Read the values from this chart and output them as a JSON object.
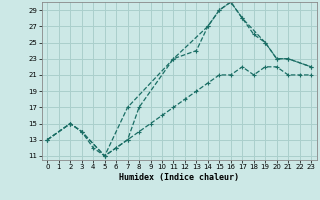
{
  "title": "",
  "xlabel": "Humidex (Indice chaleur)",
  "bg_color": "#cce8e6",
  "grid_color": "#aacfcc",
  "line_color": "#1a6e65",
  "xlim": [
    -0.5,
    23.5
  ],
  "ylim": [
    10.5,
    30.0
  ],
  "xticks": [
    0,
    1,
    2,
    3,
    4,
    5,
    6,
    7,
    8,
    9,
    10,
    11,
    12,
    13,
    14,
    15,
    16,
    17,
    18,
    19,
    20,
    21,
    22,
    23
  ],
  "yticks": [
    11,
    13,
    15,
    17,
    19,
    21,
    23,
    25,
    27,
    29
  ],
  "line1_x": [
    0,
    2,
    3,
    5,
    6,
    7,
    8,
    11,
    13,
    14,
    15,
    16,
    17,
    19,
    20,
    21,
    23
  ],
  "line1_y": [
    13,
    15,
    14,
    11,
    12,
    13,
    17,
    23,
    24,
    27,
    29,
    30,
    28,
    25,
    23,
    23,
    22
  ],
  "line2_x": [
    0,
    2,
    3,
    5,
    7,
    11,
    14,
    15,
    16,
    17,
    18,
    19,
    20,
    21,
    23
  ],
  "line2_y": [
    13,
    15,
    14,
    11,
    17,
    23,
    27,
    29,
    30,
    28,
    26,
    25,
    23,
    23,
    22
  ],
  "line3_x": [
    0,
    2,
    3,
    4,
    5,
    6,
    7,
    8,
    9,
    10,
    11,
    12,
    13,
    14,
    15,
    16,
    17,
    18,
    19,
    20,
    21,
    22,
    23
  ],
  "line3_y": [
    13,
    15,
    14,
    12,
    11,
    12,
    13,
    14,
    15,
    16,
    17,
    18,
    19,
    20,
    21,
    21,
    22,
    21,
    22,
    22,
    21,
    21,
    21
  ]
}
